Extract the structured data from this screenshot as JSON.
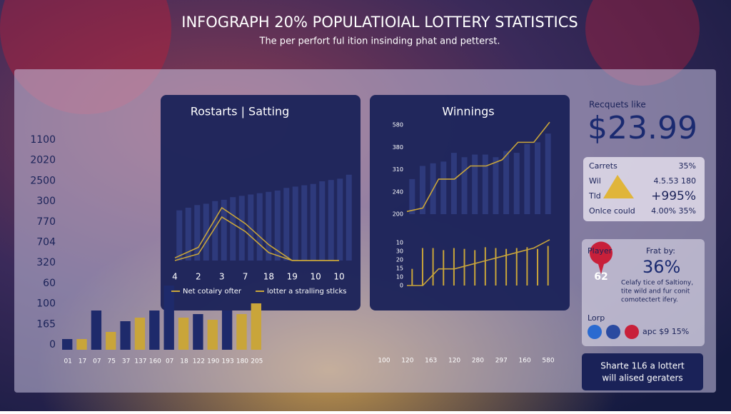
{
  "header": {
    "title": "INFOGRAPH 20% POPULATIOIAL LOTTERY STATISTICS",
    "subtitle": "The per perfort ful ition insinding phat and petterst."
  },
  "chart_data": [
    {
      "type": "bar",
      "categories": [
        "01",
        "17",
        "07",
        "75",
        "37",
        "137",
        "160",
        "07",
        "18",
        "122",
        "190",
        "193",
        "180",
        "205"
      ],
      "values": [
        15,
        15,
        55,
        25,
        40,
        45,
        55,
        90,
        45,
        50,
        42,
        55,
        50,
        65
      ],
      "colors": [
        "#1e2a6b",
        "#c9a53a",
        "#1e2a6b",
        "#c9a53a",
        "#1e2a6b",
        "#c9a53a",
        "#1e2a6b",
        "#1e2a6b",
        "#c9a53a",
        "#1e2a6b",
        "#c9a53a",
        "#1e2a6b",
        "#c9a53a",
        "#c9a53a"
      ],
      "ylim": [
        0,
        100
      ],
      "axis_labels": [
        "1100",
        "2020",
        "2500",
        "300",
        "770",
        "704",
        "320",
        "60",
        "100",
        "165",
        "0"
      ]
    },
    {
      "type": "combo",
      "title": "Rostarts | Satting",
      "bar_color": "#2e3a7c",
      "bar_values": [
        38,
        40,
        42,
        43,
        45,
        46,
        48,
        49,
        50,
        51,
        52,
        53,
        55,
        56,
        57,
        58,
        60,
        61,
        62,
        65
      ],
      "ylim": [
        0,
        100
      ],
      "categories": [
        "4",
        "2",
        "3",
        "7",
        "18",
        "19",
        "10",
        "10"
      ],
      "series": [
        {
          "name": "Net cotairy ofter",
          "color": "#c9a53a",
          "values": [
            2,
            10,
            40,
            28,
            12,
            0,
            0,
            0
          ]
        },
        {
          "name": "lotter a stralling stlcks",
          "color": "#c9a53a",
          "values": [
            0,
            5,
            33,
            22,
            6,
            0,
            0,
            0
          ]
        }
      ]
    },
    {
      "type": "split",
      "title": "Winnings",
      "categories": [
        "100",
        "120",
        "163",
        "120",
        "280",
        "297",
        "160",
        "580"
      ],
      "upper": {
        "ylim": [
          0,
          110
        ],
        "axis_labels": [
          "580",
          "380",
          "310",
          "240",
          "200"
        ],
        "bar_color": "#2e3a7c",
        "bar_values": [
          40,
          55,
          58,
          60,
          70,
          65,
          68,
          68,
          65,
          72,
          70,
          80,
          82,
          92
        ],
        "line_color": "#c9a53a",
        "line_values": [
          3,
          7,
          40,
          40,
          55,
          55,
          62,
          82,
          82,
          105
        ]
      },
      "lower": {
        "ylim": [
          0,
          120
        ],
        "axis_labels": [
          "10",
          "30",
          "20",
          "15",
          "10",
          "0"
        ],
        "bar_color": "#c9a53a",
        "bar_values": [
          40,
          90,
          90,
          85,
          90,
          88,
          85,
          92,
          90,
          88,
          90,
          92,
          88,
          95
        ],
        "line_color": "#c9a53a",
        "line_values": [
          0,
          0,
          40,
          40,
          50,
          60,
          70,
          80,
          90,
          110
        ]
      }
    }
  ],
  "sidebar": {
    "caption": "Recquets like",
    "price": "$23.99",
    "stats": [
      [
        "Carrets",
        "35%"
      ],
      [
        "Wil",
        "4.5.53 180"
      ],
      [
        "Tld",
        "+995%"
      ],
      [
        "Onlce could",
        "4.00% 35%"
      ]
    ],
    "player": "Player",
    "frat": "Frat by:",
    "percent": "36%",
    "badge": "62",
    "description": [
      "Celafy tice of Saltiony,",
      "tite wild and fur conit",
      "comotectert ifery."
    ],
    "lorp": "Lorp",
    "social": "apc $9 15%",
    "button": [
      "Sharte 1L6 a lottert",
      "will alised geraters"
    ]
  }
}
